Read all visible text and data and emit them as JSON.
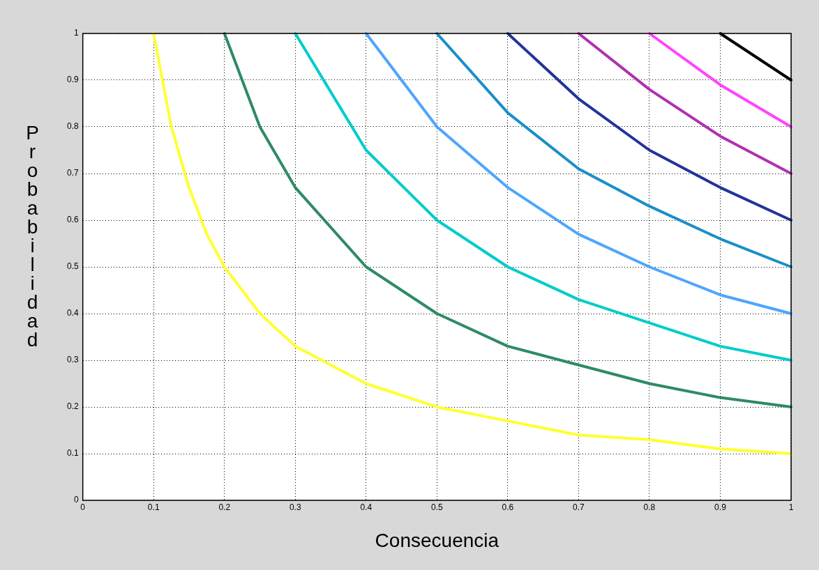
{
  "chart_data": {
    "type": "line",
    "xlabel": "Consecuencia",
    "ylabel": "Probabilidad",
    "xlim": [
      0,
      1
    ],
    "ylim": [
      0,
      1
    ],
    "xticks": [
      0,
      0.1,
      0.2,
      0.3,
      0.4,
      0.5,
      0.6,
      0.7,
      0.8,
      0.9,
      1
    ],
    "yticks": [
      0,
      0.1,
      0.2,
      0.3,
      0.4,
      0.5,
      0.6,
      0.7,
      0.8,
      0.9,
      1
    ],
    "grid": true,
    "legend": false,
    "marker": "none",
    "line_style": "solid",
    "series": [
      {
        "color": "#ffff33",
        "x": [
          0.1,
          0.125,
          0.15,
          0.175,
          0.2,
          0.25,
          0.3,
          0.4,
          0.5,
          0.6,
          0.7,
          0.8,
          0.9,
          1
        ],
        "values": [
          1,
          0.8,
          0.67,
          0.57,
          0.5,
          0.4,
          0.33,
          0.25,
          0.2,
          0.17,
          0.14,
          0.13,
          0.11,
          0.1
        ]
      },
      {
        "color": "#2e8b64",
        "x": [
          0.2,
          0.25,
          0.3,
          0.4,
          0.5,
          0.6,
          0.7,
          0.8,
          0.9,
          1
        ],
        "values": [
          1,
          0.8,
          0.67,
          0.5,
          0.4,
          0.33,
          0.29,
          0.25,
          0.22,
          0.2
        ]
      },
      {
        "color": "#00cccc",
        "x": [
          0.3,
          0.4,
          0.5,
          0.6,
          0.7,
          0.8,
          0.9,
          1
        ],
        "values": [
          1,
          0.75,
          0.6,
          0.5,
          0.43,
          0.38,
          0.33,
          0.3
        ]
      },
      {
        "color": "#4da6ff",
        "x": [
          0.4,
          0.5,
          0.6,
          0.7,
          0.8,
          0.9,
          1
        ],
        "values": [
          1,
          0.8,
          0.67,
          0.57,
          0.5,
          0.44,
          0.4
        ]
      },
      {
        "color": "#1a8fc9",
        "x": [
          0.5,
          0.6,
          0.7,
          0.8,
          0.9,
          1
        ],
        "values": [
          1,
          0.83,
          0.71,
          0.63,
          0.56,
          0.5
        ]
      },
      {
        "color": "#223399",
        "x": [
          0.6,
          0.7,
          0.8,
          0.9,
          1
        ],
        "values": [
          1,
          0.86,
          0.75,
          0.67,
          0.6
        ]
      },
      {
        "color": "#b030b0",
        "x": [
          0.7,
          0.8,
          0.9,
          1
        ],
        "values": [
          1,
          0.88,
          0.78,
          0.7
        ]
      },
      {
        "color": "#ff44ff",
        "x": [
          0.8,
          0.9,
          1
        ],
        "values": [
          1,
          0.89,
          0.8
        ]
      },
      {
        "color": "#000000",
        "x": [
          0.9,
          1
        ],
        "values": [
          1,
          0.9
        ]
      }
    ]
  }
}
